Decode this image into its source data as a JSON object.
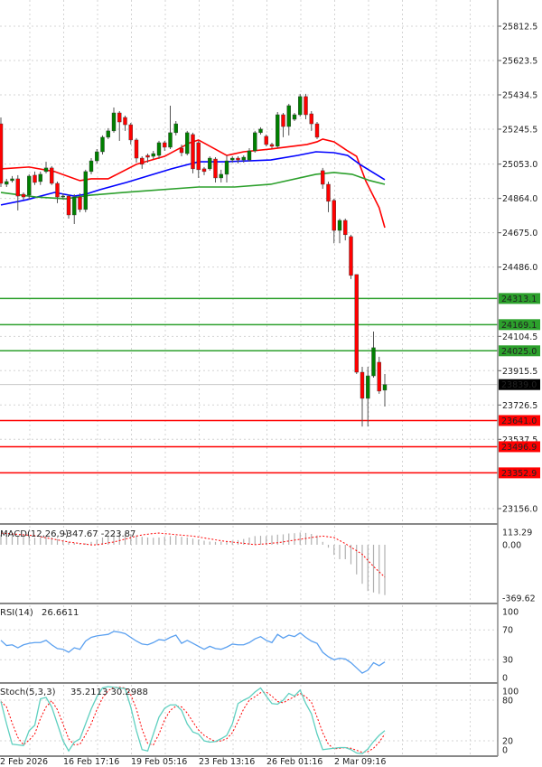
{
  "chart_data": [
    {
      "type": "candlestick",
      "y_ticks": [
        "25812.5",
        "25623.5",
        "25434.5",
        "25245.5",
        "25053.0",
        "24864.0",
        "24675.0",
        "24486.0",
        "24104.5",
        "23915.5",
        "23726.5",
        "23537.5",
        "23156.0"
      ],
      "y_range": [
        23156.0,
        25812.5
      ],
      "grid": true,
      "colors": {
        "up": "#008000",
        "down": "#ff0000",
        "support": "#ff0000",
        "resistance": "#2ca02c"
      },
      "current_price": {
        "value": 23839.0,
        "label": "23839.0",
        "color": "#000000"
      },
      "levels": [
        {
          "value": 24313.1,
          "label": "24313.1",
          "color": "#2ca02c"
        },
        {
          "value": 24169.1,
          "label": "24169.1",
          "color": "#2ca02c"
        },
        {
          "value": 24025.0,
          "label": "24025.0",
          "color": "#2ca02c"
        },
        {
          "value": 23641.0,
          "label": "23641.0",
          "color": "#ff0000"
        },
        {
          "value": 23496.9,
          "label": "23496.9",
          "color": "#ff0000"
        },
        {
          "value": 23352.9,
          "label": "23352.9",
          "color": "#ff0000"
        }
      ],
      "candles_ohlc": [
        [
          25275,
          25310,
          24927,
          24947
        ],
        [
          24942,
          24972,
          24927,
          24957
        ],
        [
          24962,
          24987,
          24952,
          24972
        ],
        [
          24972,
          24992,
          24798,
          24877
        ],
        [
          24887,
          24897,
          24858,
          24872
        ],
        [
          24882,
          24997,
          24858,
          24987
        ],
        [
          24992,
          25012,
          24938,
          24952
        ],
        [
          24957,
          25012,
          24938,
          24997
        ],
        [
          25012,
          25066,
          25002,
          25032
        ],
        [
          25032,
          25042,
          24938,
          24947
        ],
        [
          24947,
          24957,
          24838,
          24872
        ],
        [
          24872,
          24892,
          24858,
          24877
        ],
        [
          24877,
          24887,
          24753,
          24773
        ],
        [
          24773,
          24887,
          24723,
          24872
        ],
        [
          24872,
          24892,
          24788,
          24803
        ],
        [
          24803,
          25022,
          24788,
          25012
        ],
        [
          25012,
          25086,
          24997,
          25071
        ],
        [
          25071,
          25136,
          25056,
          25121
        ],
        [
          25121,
          25211,
          25106,
          25201
        ],
        [
          25201,
          25251,
          25191,
          25236
        ],
        [
          25236,
          25365,
          25226,
          25335
        ],
        [
          25335,
          25345,
          25181,
          25285
        ],
        [
          25310,
          25320,
          25236,
          25270
        ],
        [
          25270,
          25280,
          25161,
          25186
        ],
        [
          25186,
          25196,
          25061,
          25086
        ],
        [
          25086,
          25096,
          25027,
          25052
        ],
        [
          25101,
          25111,
          25061,
          25091
        ],
        [
          25096,
          25126,
          25081,
          25111
        ],
        [
          25101,
          25181,
          25081,
          25171
        ],
        [
          25171,
          25181,
          25126,
          25146
        ],
        [
          25146,
          25375,
          25136,
          25226
        ],
        [
          25226,
          25290,
          25211,
          25275
        ],
        [
          25141,
          25161,
          25096,
          25116
        ],
        [
          25111,
          25236,
          25101,
          25226
        ],
        [
          25216,
          25226,
          25002,
          25027
        ],
        [
          25171,
          25181,
          24977,
          25022
        ],
        [
          25027,
          25037,
          24992,
          25012
        ],
        [
          25027,
          25096,
          25017,
          25086
        ],
        [
          25081,
          25091,
          24952,
          24977
        ],
        [
          24977,
          25022,
          24952,
          24997
        ],
        [
          24997,
          25101,
          24952,
          25071
        ],
        [
          25076,
          25096,
          25061,
          25086
        ],
        [
          25086,
          25096,
          25056,
          25076
        ],
        [
          25076,
          25101,
          25061,
          25091
        ],
        [
          25076,
          25141,
          25066,
          25126
        ],
        [
          25126,
          25236,
          25116,
          25226
        ],
        [
          25226,
          25256,
          25216,
          25246
        ],
        [
          25206,
          25216,
          25151,
          25161
        ],
        [
          25161,
          25171,
          25141,
          25151
        ],
        [
          25151,
          25340,
          25141,
          25325
        ],
        [
          25325,
          25335,
          25201,
          25260
        ],
        [
          25260,
          25385,
          25211,
          25375
        ],
        [
          25300,
          25335,
          25290,
          25325
        ],
        [
          25325,
          25440,
          25315,
          25425
        ],
        [
          25425,
          25440,
          25300,
          25325
        ],
        [
          25330,
          25345,
          25236,
          25275
        ],
        [
          25275,
          25285,
          25191,
          25201
        ],
        [
          25017,
          25032,
          24917,
          24942
        ],
        [
          24942,
          24957,
          24788,
          24848
        ],
        [
          24853,
          24863,
          24617,
          24688
        ],
        [
          24688,
          24753,
          24617,
          24743
        ],
        [
          24743,
          24753,
          24633,
          24664
        ],
        [
          24654,
          24664,
          24420,
          24440
        ],
        [
          24445,
          24445,
          23897,
          23907
        ],
        [
          23907,
          23937,
          23608,
          23763
        ],
        [
          23763,
          23937,
          23608,
          23887
        ],
        [
          23887,
          24131,
          23877,
          24042
        ],
        [
          23962,
          23992,
          23788,
          23803
        ],
        [
          23808,
          23897,
          23718,
          23839
        ]
      ],
      "moving_averages": [
        {
          "color": "#ff0000",
          "points": [
            [
              1,
              25027
            ],
            [
              6,
              25037
            ],
            [
              10.5,
              25012
            ],
            [
              15,
              24962
            ],
            [
              17,
              24972
            ],
            [
              20,
              24972
            ],
            [
              25,
              25052
            ],
            [
              30,
              25096
            ],
            [
              34.5,
              25171
            ],
            [
              36,
              25186
            ],
            [
              41,
              25101
            ],
            [
              44,
              25121
            ],
            [
              48.8,
              25136
            ],
            [
              55.2,
              25161
            ],
            [
              57,
              25176
            ],
            [
              58,
              25191
            ],
            [
              60,
              25176
            ],
            [
              62.4,
              25126
            ],
            [
              64,
              25096
            ],
            [
              65.6,
              24962
            ],
            [
              68,
              24813
            ],
            [
              69,
              24703
            ]
          ]
        },
        {
          "color": "#0000ff",
          "points": [
            [
              1,
              24828
            ],
            [
              5.6,
              24857
            ],
            [
              10.5,
              24897
            ],
            [
              14,
              24877
            ],
            [
              16,
              24887
            ],
            [
              18.5,
              24912
            ],
            [
              23.2,
              24952
            ],
            [
              31.2,
              25027
            ],
            [
              36,
              25066
            ],
            [
              40.8,
              25066
            ],
            [
              48.8,
              25076
            ],
            [
              53.6,
              25101
            ],
            [
              56.8,
              25121
            ],
            [
              60,
              25116
            ],
            [
              62.4,
              25101
            ],
            [
              64.8,
              25047
            ],
            [
              69,
              24967
            ]
          ]
        },
        {
          "color": "#2ca02c",
          "points": [
            [
              1,
              24897
            ],
            [
              7.2,
              24872
            ],
            [
              12.5,
              24862
            ],
            [
              16.8,
              24882
            ],
            [
              24.8,
              24902
            ],
            [
              36,
              24927
            ],
            [
              42.4,
              24927
            ],
            [
              48.8,
              24942
            ],
            [
              56.8,
              24997
            ],
            [
              60,
              25007
            ],
            [
              63.2,
              24997
            ],
            [
              66.4,
              24962
            ],
            [
              69,
              24942
            ]
          ]
        }
      ],
      "x_labels": [
        "2 Feb 2026",
        "16 Feb 17:16",
        "19 Feb 05:16",
        "23 Feb 13:16",
        "26 Feb 01:16",
        "2 Mar 09:16"
      ]
    },
    {
      "type": "bar",
      "title": "MACD(12,26,9)",
      "readout": "-347.67 -223.87",
      "y_ticks": [
        "113.29",
        "0.00",
        "-369.62"
      ],
      "y_range": [
        -369.62,
        113.29
      ],
      "histogram_color": "#b0b0b0",
      "signal_color": "#ff0000",
      "histogram": [
        70,
        65,
        60,
        58,
        55,
        50,
        48,
        50,
        55,
        52,
        40,
        30,
        20,
        12,
        8,
        10,
        20,
        35,
        50,
        65,
        80,
        85,
        82,
        75,
        65,
        55,
        50,
        48,
        50,
        55,
        60,
        62,
        55,
        50,
        42,
        35,
        28,
        22,
        20,
        22,
        25,
        28,
        32,
        40,
        50,
        60,
        62,
        60,
        65,
        70,
        72,
        78,
        80,
        85,
        82,
        75,
        65,
        20,
        -20,
        -70,
        -100,
        -100,
        -135,
        -205,
        -270,
        -320,
        -330,
        -340,
        -348
      ],
      "signal": [
        81,
        78,
        75,
        72,
        69,
        66,
        63,
        56,
        48,
        41,
        34,
        26,
        19,
        14,
        9,
        4,
        -1,
        0,
        6,
        13,
        19,
        29,
        39,
        49,
        60,
        68,
        73,
        78,
        81,
        77,
        74,
        70,
        67,
        63,
        60,
        54,
        47,
        41,
        34,
        28,
        23,
        19,
        14,
        10,
        5,
        1,
        4,
        7,
        11,
        14,
        20,
        26,
        32,
        38,
        44,
        50,
        55,
        60,
        55,
        50,
        29,
        8,
        -17,
        -41,
        -66,
        -108,
        -150,
        -187,
        -224
      ]
    },
    {
      "type": "line",
      "title": "RSI(14)",
      "readout": "26.6611",
      "y_ticks": [
        "100",
        "70",
        "30",
        "0"
      ],
      "y_range": [
        0,
        100
      ],
      "color": "#5aa0f0",
      "values": [
        56,
        49,
        50,
        46,
        50,
        52,
        53,
        53,
        56,
        50,
        45,
        44,
        40,
        46,
        44,
        55,
        60,
        62,
        63,
        64,
        68,
        67,
        65,
        60,
        55,
        51,
        50,
        53,
        57,
        56,
        60,
        63,
        52,
        56,
        52,
        48,
        44,
        48,
        45,
        44,
        47,
        51,
        50,
        50,
        53,
        58,
        61,
        56,
        53,
        64,
        59,
        63,
        61,
        66,
        60,
        55,
        52,
        40,
        34,
        30,
        32,
        31,
        26,
        19,
        12,
        16,
        26,
        22,
        27
      ]
    },
    {
      "type": "line",
      "title": "Stoch(5,3,3)",
      "readout": "35.2113 30.2988",
      "y_ticks": [
        "100",
        "80",
        "20",
        "0"
      ],
      "y_range": [
        0,
        100
      ],
      "main_color": "#5fd0c0",
      "signal_color": "#ff0000",
      "main": [
        78,
        45,
        15,
        14,
        13,
        35,
        43,
        82,
        84,
        70,
        45,
        20,
        5,
        18,
        23,
        45,
        67,
        85,
        98,
        100,
        99,
        98,
        97,
        70,
        35,
        7,
        5,
        30,
        55,
        68,
        73,
        73,
        65,
        45,
        33,
        30,
        20,
        18,
        19,
        23,
        28,
        45,
        75,
        80,
        84,
        92,
        98,
        86,
        75,
        74,
        80,
        90,
        86,
        95,
        75,
        60,
        30,
        7,
        8,
        9,
        10,
        10,
        7,
        2,
        1,
        8,
        19,
        28,
        35
      ],
      "signal": [
        78,
        70,
        46,
        25,
        14,
        21,
        30,
        53,
        70,
        79,
        66,
        45,
        23,
        14,
        15,
        29,
        45,
        66,
        83,
        94,
        99,
        99,
        98,
        88,
        67,
        37,
        16,
        14,
        30,
        51,
        65,
        71,
        70,
        61,
        48,
        36,
        28,
        23,
        19,
        20,
        23,
        32,
        49,
        67,
        80,
        85,
        91,
        92,
        86,
        78,
        76,
        81,
        85,
        90,
        85,
        77,
        55,
        32,
        15,
        8,
        9,
        10,
        9,
        6,
        3,
        4,
        9,
        18,
        30
      ]
    }
  ]
}
